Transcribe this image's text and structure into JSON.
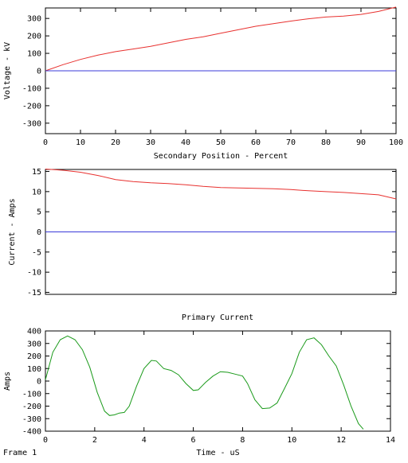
{
  "frame_label": "Frame 1",
  "chart_data": [
    {
      "type": "line",
      "title": "",
      "xlabel": "Secondary Position - Percent",
      "ylabel": "Voltage - kV",
      "xlim": [
        0,
        100
      ],
      "ylim": [
        -360,
        360
      ],
      "xticks": [
        0,
        10,
        20,
        30,
        40,
        50,
        60,
        70,
        80,
        90,
        100
      ],
      "yticks": [
        -300,
        -200,
        -100,
        0,
        100,
        200,
        300
      ],
      "grid": false,
      "series": [
        {
          "color": "#e8312f",
          "x": [
            0,
            5,
            10,
            15,
            20,
            25,
            30,
            35,
            40,
            45,
            50,
            55,
            60,
            65,
            70,
            75,
            80,
            85,
            90,
            95,
            100
          ],
          "y": [
            0,
            35,
            65,
            90,
            110,
            125,
            140,
            160,
            180,
            195,
            215,
            235,
            255,
            270,
            285,
            298,
            308,
            313,
            323,
            340,
            365
          ]
        },
        {
          "color": "#3b3bd8",
          "x": [
            0,
            10,
            20,
            30,
            40,
            50,
            60,
            70,
            80,
            90,
            100
          ],
          "y": [
            0,
            0,
            0,
            0,
            0,
            0,
            0,
            0,
            0,
            0,
            0
          ]
        }
      ]
    },
    {
      "type": "line",
      "title": "",
      "xlabel": "",
      "ylabel": "Current - Amps",
      "xlim": [
        0,
        100
      ],
      "ylim": [
        -15.5,
        15.5
      ],
      "xticks": [],
      "yticks": [
        -15,
        -10,
        -5,
        0,
        5,
        10,
        15
      ],
      "grid": false,
      "series": [
        {
          "color": "#e8312f",
          "x": [
            0,
            5,
            10,
            15,
            20,
            25,
            30,
            35,
            40,
            45,
            50,
            55,
            60,
            65,
            70,
            75,
            80,
            85,
            90,
            95,
            100
          ],
          "y": [
            15.6,
            15.3,
            14.8,
            14.0,
            13.0,
            12.5,
            12.2,
            12.0,
            11.7,
            11.3,
            11.0,
            10.9,
            10.8,
            10.7,
            10.5,
            10.2,
            10.0,
            9.8,
            9.5,
            9.2,
            8.2
          ]
        },
        {
          "color": "#3b3bd8",
          "x": [
            0,
            10,
            20,
            30,
            40,
            50,
            60,
            70,
            80,
            90,
            100
          ],
          "y": [
            0,
            0,
            0,
            0,
            0,
            0,
            0,
            0,
            0,
            0,
            0
          ]
        }
      ]
    },
    {
      "type": "line",
      "title": "Primary Current",
      "xlabel": "Time - uS",
      "ylabel": "Amps",
      "xlim": [
        0,
        14
      ],
      "ylim": [
        -400,
        400
      ],
      "xticks": [
        0,
        2,
        4,
        6,
        8,
        10,
        12,
        14
      ],
      "yticks": [
        -400,
        -300,
        -200,
        -100,
        0,
        100,
        200,
        300,
        400
      ],
      "grid": false,
      "series": [
        {
          "color": "#1a9a1a",
          "x": [
            0,
            0.3,
            0.6,
            0.9,
            1.2,
            1.5,
            1.8,
            2.1,
            2.4,
            2.6,
            2.8,
            3.0,
            3.2,
            3.4,
            3.7,
            4.0,
            4.3,
            4.5,
            4.8,
            5.1,
            5.4,
            5.7,
            6.0,
            6.2,
            6.5,
            6.8,
            7.1,
            7.4,
            7.7,
            8.0,
            8.2,
            8.5,
            8.8,
            9.1,
            9.4,
            9.7,
            10.0,
            10.3,
            10.6,
            10.9,
            11.2,
            11.5,
            11.8,
            12.1,
            12.4,
            12.7,
            12.9
          ],
          "y": [
            10,
            230,
            330,
            360,
            330,
            250,
            110,
            -90,
            -240,
            -275,
            -270,
            -255,
            -250,
            -200,
            -40,
            100,
            165,
            160,
            100,
            85,
            50,
            -20,
            -75,
            -70,
            -10,
            40,
            75,
            70,
            55,
            40,
            -20,
            -150,
            -220,
            -215,
            -175,
            -60,
            60,
            230,
            330,
            345,
            290,
            200,
            120,
            -30,
            -200,
            -340,
            -385
          ]
        }
      ]
    }
  ]
}
